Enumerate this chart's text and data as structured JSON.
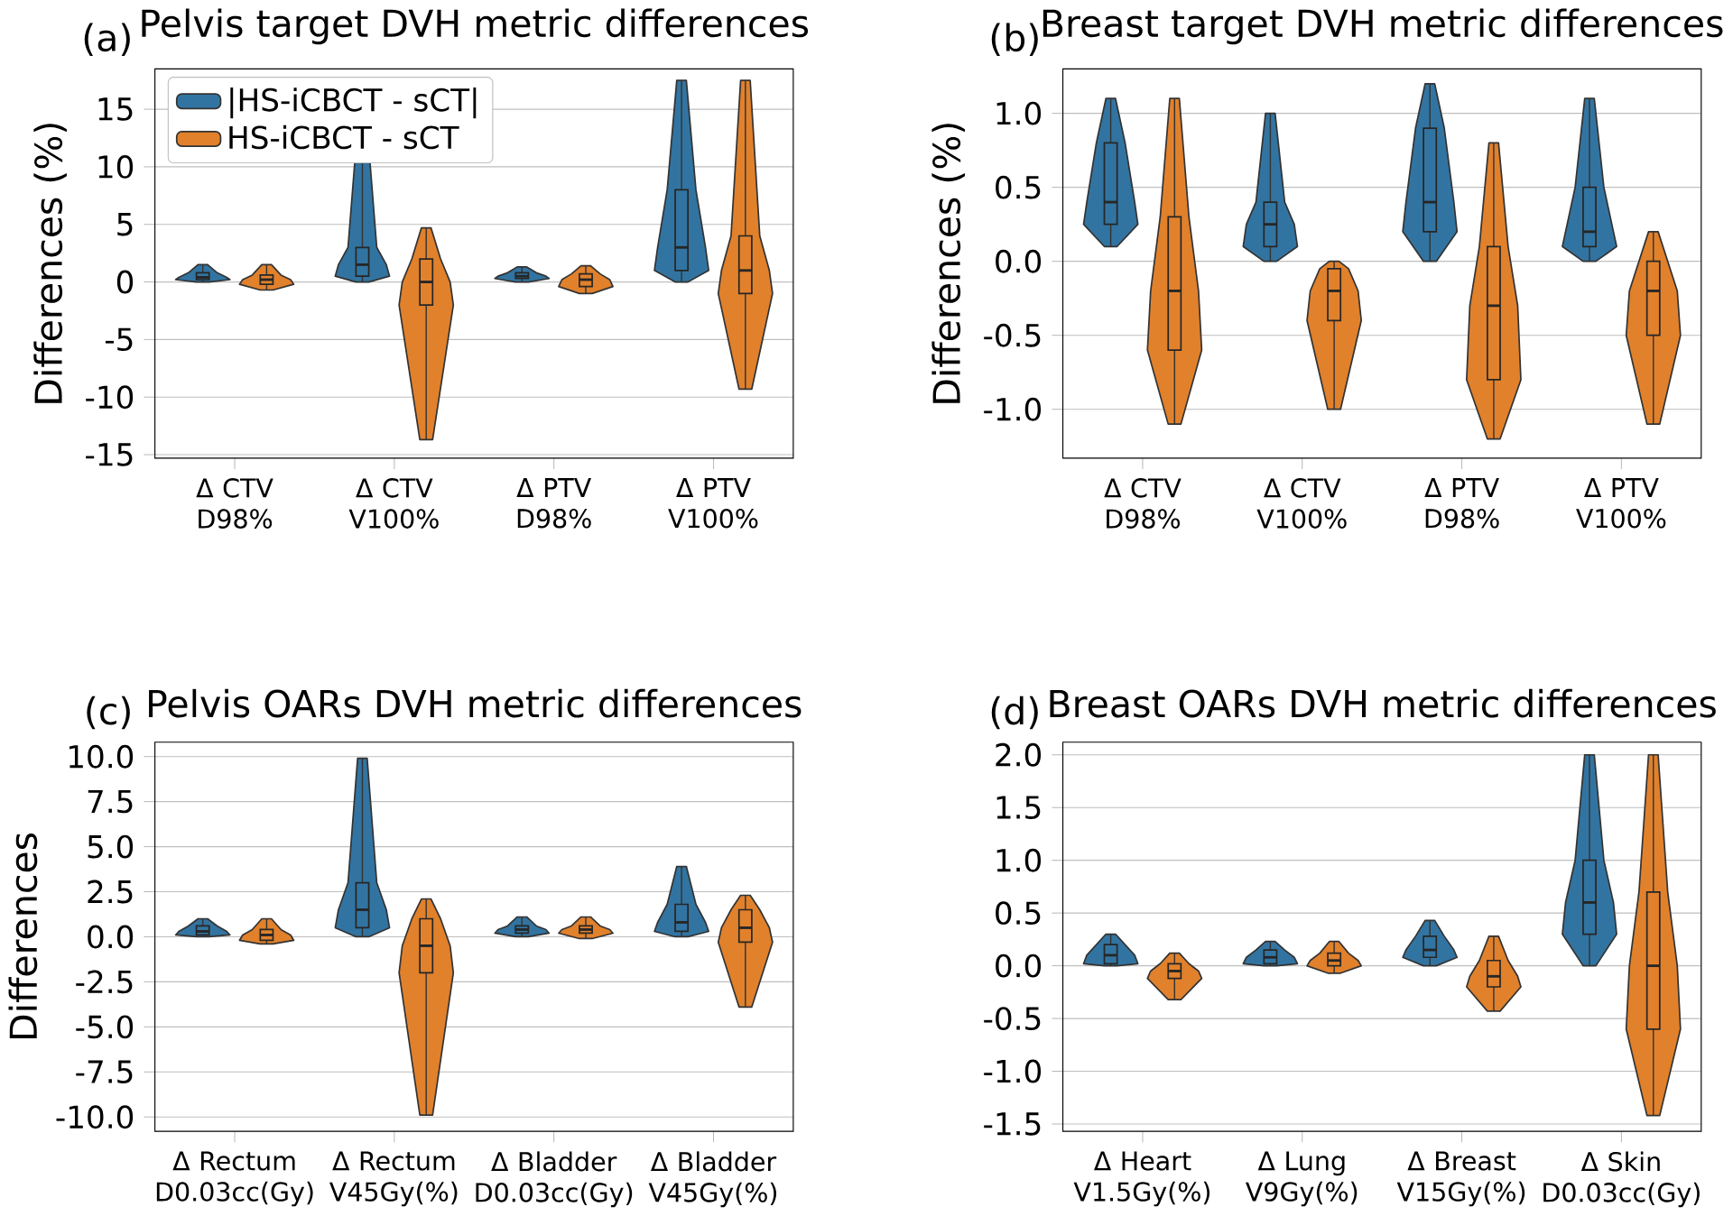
{
  "chart_data": [
    {
      "type": "box",
      "title": "Pelvis target DVH metric differences",
      "ylabel": "Differences (%)",
      "annotations": [
        "(a)"
      ],
      "categories": [
        "Δ CTV D98%",
        "Δ CTV V100%",
        "Δ PTV D98%",
        "Δ PTV V100%"
      ],
      "ylim": [
        -15.3,
        18.5
      ],
      "yticks": [
        -15,
        -10,
        -5,
        0,
        5,
        10,
        15
      ],
      "grid": "y",
      "legend": "top left",
      "series": [
        {
          "name": "|HS-iCBCT - sCT|",
          "color": "#3274a1",
          "boxes": [
            {
              "low": 0,
              "q1": 0.2,
              "median": 0.4,
              "q3": 0.8,
              "high": 1.5
            },
            {
              "low": 0,
              "q1": 0.5,
              "median": 1.5,
              "q3": 3,
              "high": 13.5
            },
            {
              "low": 0,
              "q1": 0.3,
              "median": 0.5,
              "q3": 0.8,
              "high": 1.3
            },
            {
              "low": 0,
              "q1": 1,
              "median": 3,
              "q3": 8,
              "high": 17.5
            }
          ]
        },
        {
          "name": "HS-iCBCT - sCT",
          "color": "#e1812c",
          "boxes": [
            {
              "low": -0.7,
              "q1": -0.2,
              "median": 0.2,
              "q3": 0.6,
              "high": 1.5
            },
            {
              "low": -13.7,
              "q1": -2,
              "median": 0,
              "q3": 2,
              "high": 4.7
            },
            {
              "low": -1,
              "q1": -0.4,
              "median": 0.2,
              "q3": 0.7,
              "high": 1.4
            },
            {
              "low": -9.3,
              "q1": -1,
              "median": 1,
              "q3": 4,
              "high": 17.5
            }
          ]
        }
      ]
    },
    {
      "type": "box",
      "title": "Breast target DVH metric differences",
      "ylabel": "Differences (%)",
      "annotations": [
        "(b)"
      ],
      "categories": [
        "Δ CTV D98%",
        "Δ CTV V100%",
        "Δ PTV D98%",
        "Δ PTV V100%"
      ],
      "ylim": [
        -1.33,
        1.3
      ],
      "yticks": [
        {
          "value": -1,
          "label": "-1.0"
        },
        {
          "value": -0.5,
          "label": "-0.5"
        },
        {
          "value": 0,
          "label": "0.0"
        },
        {
          "value": 0.5,
          "label": "0.5"
        },
        {
          "value": 1,
          "label": "1.0"
        }
      ],
      "grid": "y",
      "series": [
        {
          "color": "#3274a1",
          "boxes": [
            {
              "low": 0.1,
              "q1": 0.25,
              "median": 0.4,
              "q3": 0.8,
              "high": 1.1
            },
            {
              "low": 0,
              "q1": 0.1,
              "median": 0.25,
              "q3": 0.4,
              "high": 1.0
            },
            {
              "low": 0,
              "q1": 0.2,
              "median": 0.4,
              "q3": 0.9,
              "high": 1.2
            },
            {
              "low": 0,
              "q1": 0.1,
              "median": 0.2,
              "q3": 0.5,
              "high": 1.1
            }
          ]
        },
        {
          "color": "#e1812c",
          "boxes": [
            {
              "low": -1.1,
              "q1": -0.6,
              "median": -0.2,
              "q3": 0.3,
              "high": 1.1
            },
            {
              "low": -1.0,
              "q1": -0.4,
              "median": -0.2,
              "q3": -0.05,
              "high": 0
            },
            {
              "low": -1.2,
              "q1": -0.8,
              "median": -0.3,
              "q3": 0.1,
              "high": 0.8
            },
            {
              "low": -1.1,
              "q1": -0.5,
              "median": -0.2,
              "q3": 0,
              "high": 0.2
            }
          ]
        }
      ]
    },
    {
      "type": "box",
      "title": "Pelvis OARs DVH metric differences",
      "ylabel": "Differences",
      "annotations": [
        "(c)"
      ],
      "categories": [
        "Δ Rectum D0.03cc(Gy)",
        "Δ Rectum V45Gy(%)",
        "Δ Bladder D0.03cc(Gy)",
        "Δ Bladder V45Gy(%)"
      ],
      "ylim": [
        -10.8,
        10.8
      ],
      "yticks": [
        {
          "value": -10,
          "label": "-10.0"
        },
        {
          "value": -7.5,
          "label": "-7.5"
        },
        {
          "value": -5,
          "label": "-5.0"
        },
        {
          "value": -2.5,
          "label": "-2.5"
        },
        {
          "value": 0,
          "label": "0.0"
        },
        {
          "value": 2.5,
          "label": "2.5"
        },
        {
          "value": 5,
          "label": "5.0"
        },
        {
          "value": 7.5,
          "label": "7.5"
        },
        {
          "value": 10,
          "label": "10.0"
        }
      ],
      "grid": "y",
      "series": [
        {
          "color": "#3274a1",
          "boxes": [
            {
              "low": 0,
              "q1": 0.1,
              "median": 0.3,
              "q3": 0.6,
              "high": 1.0
            },
            {
              "low": 0,
              "q1": 0.5,
              "median": 1.5,
              "q3": 3,
              "high": 9.9
            },
            {
              "low": 0,
              "q1": 0.2,
              "median": 0.4,
              "q3": 0.6,
              "high": 1.1
            },
            {
              "low": 0,
              "q1": 0.3,
              "median": 0.8,
              "q3": 1.8,
              "high": 3.9
            }
          ]
        },
        {
          "color": "#e1812c",
          "boxes": [
            {
              "low": -0.4,
              "q1": -0.2,
              "median": 0.1,
              "q3": 0.4,
              "high": 1.0
            },
            {
              "low": -9.9,
              "q1": -2,
              "median": -0.5,
              "q3": 1,
              "high": 2.1
            },
            {
              "low": -0.1,
              "q1": 0.2,
              "median": 0.4,
              "q3": 0.6,
              "high": 1.1
            },
            {
              "low": -3.9,
              "q1": -0.3,
              "median": 0.5,
              "q3": 1.5,
              "high": 2.3
            }
          ]
        }
      ]
    },
    {
      "type": "box",
      "title": "Breast OARs DVH metric differences",
      "annotations": [
        "(d)"
      ],
      "categories": [
        "Δ Heart V1.5Gy(%)",
        "Δ Lung V9Gy(%)",
        "Δ Breast V15Gy(%)",
        "Δ Skin D0.03cc(Gy)"
      ],
      "ylim": [
        -1.57,
        2.12
      ],
      "yticks": [
        {
          "value": -1.5,
          "label": "-1.5"
        },
        {
          "value": -1,
          "label": "-1.0"
        },
        {
          "value": -0.5,
          "label": "-0.5"
        },
        {
          "value": 0,
          "label": "0.0"
        },
        {
          "value": 0.5,
          "label": "0.5"
        },
        {
          "value": 1,
          "label": "1.0"
        },
        {
          "value": 1.5,
          "label": "1.5"
        },
        {
          "value": 2,
          "label": "2.0"
        }
      ],
      "grid": "y",
      "series": [
        {
          "color": "#3274a1",
          "boxes": [
            {
              "low": 0,
              "q1": 0.02,
              "median": 0.1,
              "q3": 0.2,
              "high": 0.3
            },
            {
              "low": 0,
              "q1": 0.02,
              "median": 0.08,
              "q3": 0.15,
              "high": 0.23
            },
            {
              "low": 0,
              "q1": 0.08,
              "median": 0.15,
              "q3": 0.28,
              "high": 0.43
            },
            {
              "low": 0,
              "q1": 0.3,
              "median": 0.6,
              "q3": 1.0,
              "high": 2.0
            }
          ]
        },
        {
          "color": "#e1812c",
          "boxes": [
            {
              "low": -0.32,
              "q1": -0.12,
              "median": -0.05,
              "q3": 0.02,
              "high": 0.12
            },
            {
              "low": -0.07,
              "q1": 0,
              "median": 0.05,
              "q3": 0.12,
              "high": 0.23
            },
            {
              "low": -0.43,
              "q1": -0.2,
              "median": -0.1,
              "q3": 0.05,
              "high": 0.28
            },
            {
              "low": -1.42,
              "q1": -0.6,
              "median": 0,
              "q3": 0.7,
              "high": 2.0
            }
          ]
        }
      ]
    }
  ]
}
